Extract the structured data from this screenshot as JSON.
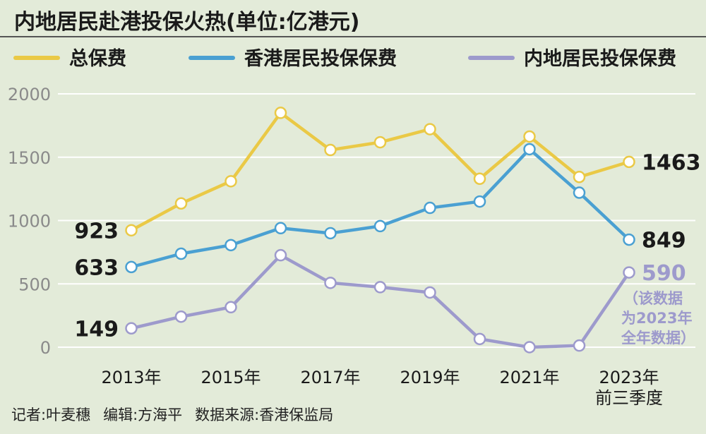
{
  "chart_data": {
    "type": "line",
    "title": "内地居民赴港投保火热(单位:亿港元)",
    "x": [
      "2013",
      "2014",
      "2015",
      "2016",
      "2017",
      "2018",
      "2019",
      "2020",
      "2021",
      "2022",
      "2023"
    ],
    "xticks": [
      "2013年",
      "",
      "2015年",
      "",
      "2017年",
      "",
      "2019年",
      "",
      "2021年",
      "",
      "2023年"
    ],
    "xtick_sub": "前三季度",
    "yticks": [
      "0",
      "500",
      "1000",
      "1500",
      "2000"
    ],
    "ylim": [
      0,
      2000
    ],
    "grid": true,
    "legend_position": "top",
    "series": [
      {
        "name": "总保费",
        "color": "#eac946",
        "values": [
          923,
          1135,
          1310,
          1850,
          1557,
          1618,
          1721,
          1330,
          1663,
          1344,
          1463
        ]
      },
      {
        "name": "香港居民投保保费",
        "color": "#4aa0d2",
        "values": [
          633,
          738,
          806,
          940,
          900,
          956,
          1100,
          1150,
          1563,
          1220,
          849
        ]
      },
      {
        "name": "内地居民投保保费",
        "color": "#9d9acc",
        "values": [
          149,
          241,
          316,
          726,
          508,
          474,
          432,
          65,
          0,
          13,
          590
        ]
      }
    ],
    "annotations": [
      {
        "series": 0,
        "point": "start",
        "text": "923"
      },
      {
        "series": 1,
        "point": "start",
        "text": "633"
      },
      {
        "series": 2,
        "point": "start",
        "text": "149"
      },
      {
        "series": 0,
        "point": "end",
        "text": "1463"
      },
      {
        "series": 1,
        "point": "end",
        "text": "849"
      },
      {
        "series": 2,
        "point": "end",
        "text": "590"
      }
    ],
    "note_lines": [
      "（该数据",
      "为2023年",
      "全年数据）"
    ]
  },
  "credits": {
    "reporter": "记者:叶麦穗",
    "editor": "编辑:方海平",
    "source": "数据来源:香港保监局"
  }
}
